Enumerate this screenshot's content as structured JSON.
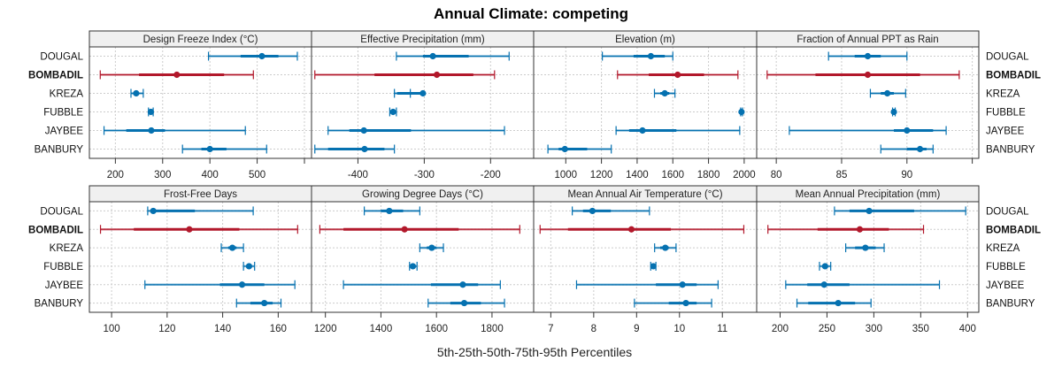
{
  "chart_data": {
    "type": "dotplot-percentiles",
    "title": "Annual Climate: competing",
    "xlabel": "5th-25th-50th-75th-95th Percentiles",
    "ylabel": "",
    "grid": true,
    "colors": {
      "focus": "#b2182b",
      "other": "#0571b0"
    },
    "rows": [
      "DOUGAL",
      "BOMBADIL",
      "KREZA",
      "FUBBLE",
      "JAYBEE",
      "BANBURY"
    ],
    "highlight_row": "BOMBADIL",
    "legend": "none",
    "panels": [
      {
        "name": "Design Freeze Index (°C)",
        "xlim": [
          145,
          615
        ],
        "ticks": [
          200,
          300,
          400,
          500,
          600
        ],
        "tick_labels": [
          "200",
          "300",
          "400",
          "500",
          ""
        ],
        "series": {
          "DOUGAL": [
            397,
            465,
            510,
            545,
            585
          ],
          "BOMBADIL": [
            168,
            250,
            330,
            430,
            492
          ],
          "KREZA": [
            233,
            238,
            244,
            250,
            259
          ],
          "FUBBLE": [
            270,
            272,
            275,
            278,
            280
          ],
          "JAYBEE": [
            176,
            223,
            276,
            305,
            475
          ],
          "BANBURY": [
            342,
            382,
            400,
            435,
            520
          ]
        }
      },
      {
        "name": "Effective Precipitation (mm)",
        "xlim": [
          -470,
          -135
        ],
        "ticks": [
          -400,
          -300,
          -200
        ],
        "tick_labels": [
          "-400",
          "-300",
          "-200"
        ],
        "series": {
          "DOUGAL": [
            -342,
            -302,
            -287,
            -233,
            -172
          ],
          "BOMBADIL": [
            -465,
            -375,
            -281,
            -226,
            -194
          ],
          "KREZA": [
            -345,
            -341,
            -302,
            -298,
            -321
          ],
          "FUBBLE": [
            -352,
            -351,
            -347,
            -344,
            -342
          ],
          "JAYBEE": [
            -445,
            -413,
            -391,
            -320,
            -179
          ],
          "BANBURY": [
            -465,
            -445,
            -390,
            -360,
            -345
          ]
        }
      },
      {
        "name": "Elevation (m)",
        "xlim": [
          820,
          2070
        ],
        "ticks": [
          1000,
          1200,
          1400,
          1600,
          1800,
          2000
        ],
        "tick_labels": [
          "1000",
          "1200",
          "1400",
          "1600",
          "1800",
          "2000"
        ],
        "series": {
          "DOUGAL": [
            1205,
            1380,
            1477,
            1555,
            1600
          ],
          "BOMBADIL": [
            1290,
            1465,
            1627,
            1775,
            1965
          ],
          "KREZA": [
            1497,
            1530,
            1555,
            1580,
            1612
          ],
          "FUBBLE": [
            1980,
            1982,
            1985,
            1988,
            1990
          ],
          "JAYBEE": [
            1282,
            1355,
            1430,
            1620,
            1975
          ],
          "BANBURY": [
            900,
            960,
            995,
            1120,
            1255
          ]
        }
      },
      {
        "name": "Fraction of Annual PPT as Rain",
        "xlim": [
          78.5,
          95.5
        ],
        "ticks": [
          80,
          85,
          90,
          95
        ],
        "tick_labels": [
          "80",
          "85",
          "90",
          ""
        ],
        "series": {
          "DOUGAL": [
            84.0,
            86.0,
            87.0,
            88.0,
            90.0
          ],
          "BOMBADIL": [
            79.3,
            83.0,
            87.0,
            91.0,
            94.0
          ],
          "KREZA": [
            87.2,
            88.0,
            88.5,
            89.0,
            89.9
          ],
          "FUBBLE": [
            88.9,
            88.95,
            89.0,
            89.05,
            89.1
          ],
          "JAYBEE": [
            81.0,
            89.0,
            90.0,
            92.0,
            93.0
          ],
          "BANBURY": [
            88.0,
            90.0,
            91.0,
            91.5,
            92.0
          ]
        }
      },
      {
        "name": "Frost-Free Days",
        "xlim": [
          92,
          172
        ],
        "ticks": [
          100,
          120,
          140,
          160
        ],
        "tick_labels": [
          "100",
          "120",
          "140",
          "160"
        ],
        "series": {
          "DOUGAL": [
            113,
            114,
            115,
            130,
            151
          ],
          "BOMBADIL": [
            96,
            108,
            128,
            146,
            167
          ],
          "KREZA": [
            139.5,
            142,
            143.5,
            145,
            147.5
          ],
          "FUBBLE": [
            147.5,
            148.5,
            149.5,
            150.5,
            151.5
          ],
          "JAYBEE": [
            112,
            139,
            147,
            155,
            166
          ],
          "BANBURY": [
            145,
            150,
            155,
            158,
            161
          ]
        }
      },
      {
        "name": "Growing Degree Days (°C)",
        "xlim": [
          1150,
          1950
        ],
        "ticks": [
          1200,
          1400,
          1600,
          1800
        ],
        "tick_labels": [
          "1200",
          "1400",
          "1600",
          "1800"
        ],
        "series": {
          "DOUGAL": [
            1340,
            1400,
            1430,
            1480,
            1540
          ],
          "BOMBADIL": [
            1180,
            1265,
            1485,
            1680,
            1900
          ],
          "KREZA": [
            1540,
            1565,
            1583,
            1600,
            1625
          ],
          "FUBBLE": [
            1503,
            1508,
            1515,
            1522,
            1530
          ],
          "JAYBEE": [
            1265,
            1580,
            1695,
            1750,
            1830
          ],
          "BANBURY": [
            1570,
            1650,
            1700,
            1760,
            1845
          ]
        }
      },
      {
        "name": "Mean Annual Air Temperature (°C)",
        "xlim": [
          6.6,
          11.8
        ],
        "ticks": [
          7,
          8,
          9,
          10,
          11
        ],
        "tick_labels": [
          "7",
          "8",
          "9",
          "10",
          "11"
        ],
        "series": {
          "DOUGAL": [
            7.5,
            7.75,
            7.97,
            8.4,
            9.3
          ],
          "BOMBADIL": [
            6.75,
            7.4,
            8.88,
            9.8,
            11.5
          ],
          "KREZA": [
            9.42,
            9.55,
            9.67,
            9.75,
            9.92
          ],
          "FUBBLE": [
            9.33,
            9.36,
            9.39,
            9.42,
            9.45
          ],
          "JAYBEE": [
            7.6,
            9.45,
            10.07,
            10.4,
            10.9
          ],
          "BANBURY": [
            8.95,
            9.75,
            10.15,
            10.4,
            10.75
          ]
        }
      },
      {
        "name": "Mean Annual Precipitation (mm)",
        "xlim": [
          175,
          412
        ],
        "ticks": [
          200,
          250,
          300,
          350,
          400
        ],
        "tick_labels": [
          "200",
          "250",
          "300",
          "350",
          "400"
        ],
        "series": {
          "DOUGAL": [
            258,
            274,
            295,
            343,
            398
          ],
          "BOMBADIL": [
            187,
            240,
            285,
            316,
            353
          ],
          "KREZA": [
            270,
            280,
            291,
            302,
            311
          ],
          "FUBBLE": [
            242,
            245,
            248,
            251,
            254
          ],
          "JAYBEE": [
            206,
            229,
            247,
            274,
            370
          ],
          "BANBURY": [
            218,
            230,
            262,
            280,
            297
          ]
        }
      }
    ]
  }
}
